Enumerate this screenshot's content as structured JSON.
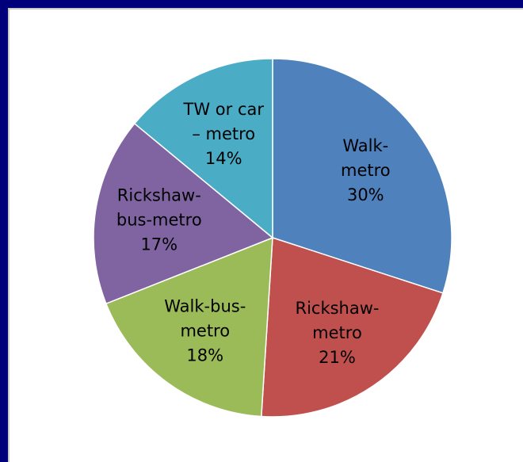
{
  "chart_data": {
    "type": "pie",
    "title": "",
    "start_angle_deg": 0,
    "direction": "clockwise",
    "slices": [
      {
        "name": "Walk-metro",
        "label_lines": [
          "Walk-",
          "metro",
          "30%"
        ],
        "value": 30,
        "color": "#4f81bd"
      },
      {
        "name": "Rickshaw-metro",
        "label_lines": [
          "Rickshaw-",
          "metro",
          "21%"
        ],
        "value": 21,
        "color": "#c0504d"
      },
      {
        "name": "Walk-bus-metro",
        "label_lines": [
          "Walk-bus-",
          "metro",
          "18%"
        ],
        "value": 18,
        "color": "#9bbb59"
      },
      {
        "name": "Rickshaw-bus-metro",
        "label_lines": [
          "Rickshaw-",
          "bus-metro",
          "17%"
        ],
        "value": 17,
        "color": "#8064a2"
      },
      {
        "name": "TW or car – metro",
        "label_lines": [
          "TW or car",
          "– metro",
          "14%"
        ],
        "value": 14,
        "color": "#4bacc6"
      }
    ],
    "legend": "none",
    "slice_border_color": "#ffffff"
  }
}
